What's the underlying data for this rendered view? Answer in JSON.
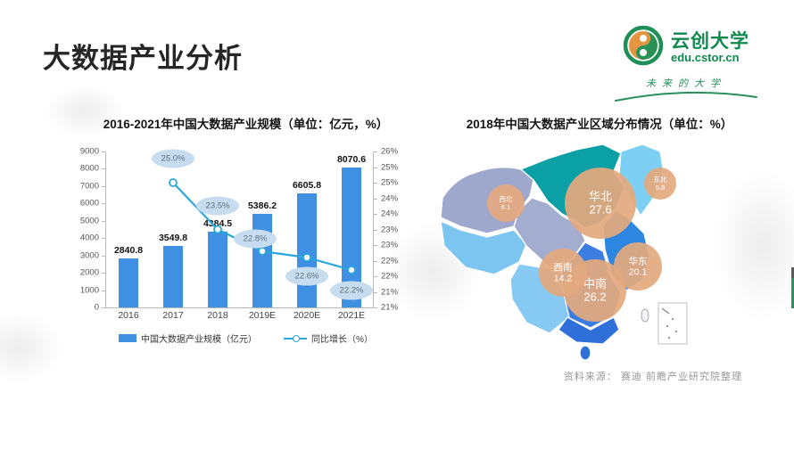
{
  "slide": {
    "title": "大数据产业分析",
    "logo": {
      "name": "云创大学",
      "domain": "edu.cstor.cn",
      "tagline": "未来的大学",
      "brand_green": "#0f8a4f",
      "brand_orange": "#e0821f"
    },
    "source_note": "资料来源： 赛迪 前瞻产业研究院整理"
  },
  "chart_data": [
    {
      "type": "bar",
      "title": "2016-2021年中国大数据产业规模（单位：亿元，%）",
      "categories": [
        "2016",
        "2017",
        "2018",
        "2019E",
        "2020E",
        "2021E"
      ],
      "series": [
        {
          "name": "中国大数据产业规模（亿元）",
          "type": "bar",
          "color": "#3f8fe3",
          "values": [
            2840.8,
            3549.8,
            4384.5,
            5386.2,
            6605.8,
            8070.6
          ]
        },
        {
          "name": "同比增长（%）",
          "type": "line",
          "color": "#2aa7dd",
          "values": [
            null,
            25.0,
            23.5,
            22.8,
            22.6,
            22.2
          ],
          "point_labels": [
            "",
            "25.0%",
            "23.5%",
            "22.8%",
            "22.6%",
            "22.2%"
          ]
        }
      ],
      "left_axis": {
        "min": 0,
        "max": 9000,
        "ticks": [
          "9000",
          "8000",
          "7000",
          "6000",
          "5000",
          "4000",
          "3000",
          "2000",
          "1000",
          "0"
        ]
      },
      "right_axis": {
        "min": 21,
        "max": 26,
        "ticks": [
          "26%",
          "25%",
          "25%",
          "24%",
          "24%",
          "23%",
          "23%",
          "22%",
          "22%",
          "21%",
          "21%"
        ]
      },
      "grid": false,
      "legend_position": "bottom"
    },
    {
      "type": "map",
      "title": "2018年中国大数据产业区域分布情况（单位：%）",
      "regions": [
        {
          "name": "华北",
          "value": 27.6
        },
        {
          "name": "中南",
          "value": 26.2
        },
        {
          "name": "华东",
          "value": 20.1
        },
        {
          "name": "西南",
          "value": 14.2
        },
        {
          "name": "西北",
          "value": 6.1
        },
        {
          "name": "东北",
          "value": 5.8
        }
      ]
    }
  ]
}
